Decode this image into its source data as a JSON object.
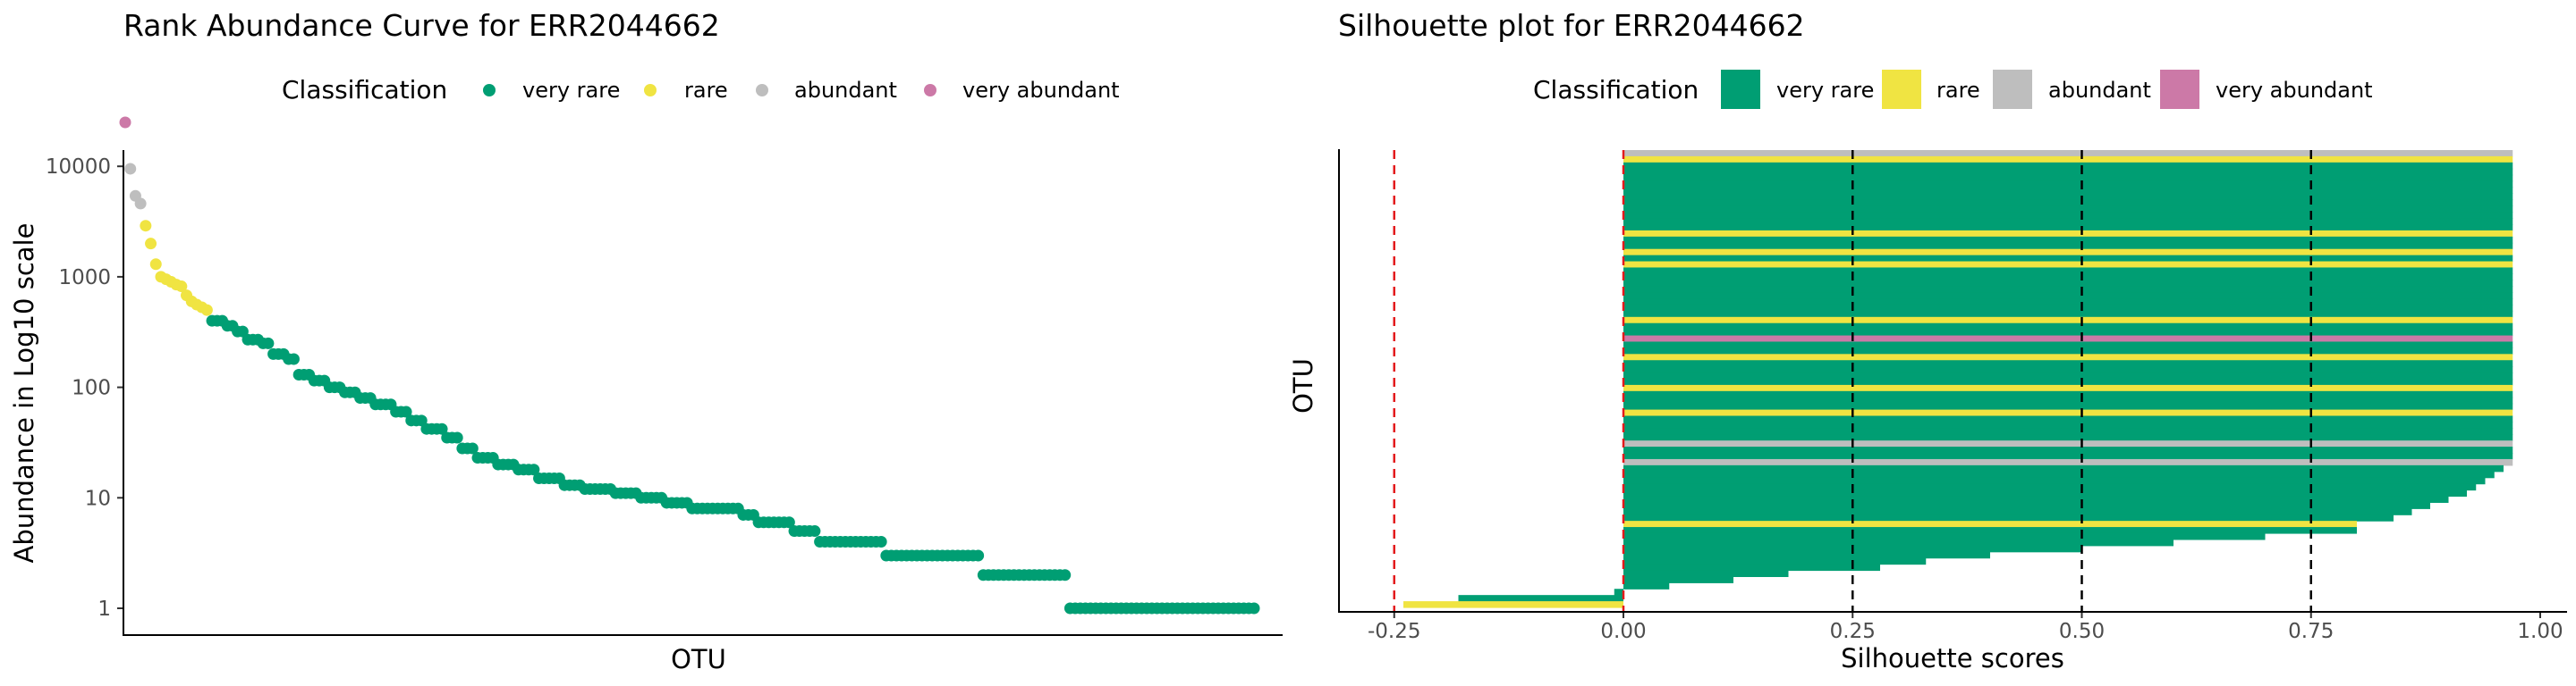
{
  "colors": {
    "very_rare": "#009E73",
    "rare": "#F0E442",
    "abundant": "#BEBEBE",
    "very_abundant": "#CC79A7"
  },
  "chart_data": [
    {
      "type": "scatter",
      "title": "Rank Abundance Curve for  ERR2044662",
      "xlabel": "OTU",
      "ylabel": "Abundance in Log10 scale",
      "y_scale": "log10",
      "ylim": [
        0.8,
        40000
      ],
      "y_ticks": [
        1,
        10,
        100,
        1000,
        10000
      ],
      "y_tick_labels": [
        "1",
        "10",
        "100",
        "1000",
        "10000"
      ],
      "x_ticks_shown": false,
      "grid": false,
      "legend": {
        "title": "Classification",
        "position": "top",
        "entries": [
          "very rare",
          "rare",
          "abundant",
          "very abundant"
        ]
      },
      "series_note": "one point per OTU, ranked by abundance",
      "points": [
        {
          "class": "very abundant",
          "values": [
            25000
          ]
        },
        {
          "class": "abundant",
          "values": [
            9500,
            5400,
            4600
          ]
        },
        {
          "class": "rare",
          "values": [
            2900,
            2000,
            1300,
            1000,
            950,
            900,
            850,
            820,
            680,
            600,
            560,
            530,
            500
          ]
        },
        {
          "class": "very rare",
          "runs": [
            {
              "value": 400,
              "count": 3
            },
            {
              "value": 360,
              "count": 2
            },
            {
              "value": 320,
              "count": 2
            },
            {
              "value": 270,
              "count": 3
            },
            {
              "value": 250,
              "count": 2
            },
            {
              "value": 200,
              "count": 3
            },
            {
              "value": 180,
              "count": 2
            },
            {
              "value": 130,
              "count": 3
            },
            {
              "value": 115,
              "count": 3
            },
            {
              "value": 100,
              "count": 3
            },
            {
              "value": 90,
              "count": 3
            },
            {
              "value": 80,
              "count": 3
            },
            {
              "value": 70,
              "count": 4
            },
            {
              "value": 60,
              "count": 3
            },
            {
              "value": 50,
              "count": 3
            },
            {
              "value": 42,
              "count": 4
            },
            {
              "value": 35,
              "count": 3
            },
            {
              "value": 28,
              "count": 3
            },
            {
              "value": 23,
              "count": 4
            },
            {
              "value": 20,
              "count": 4
            },
            {
              "value": 18,
              "count": 4
            },
            {
              "value": 15,
              "count": 5
            },
            {
              "value": 13,
              "count": 4
            },
            {
              "value": 12,
              "count": 6
            },
            {
              "value": 11,
              "count": 5
            },
            {
              "value": 10,
              "count": 5
            },
            {
              "value": 9,
              "count": 5
            },
            {
              "value": 8,
              "count": 10
            },
            {
              "value": 7,
              "count": 3
            },
            {
              "value": 6,
              "count": 7
            },
            {
              "value": 5,
              "count": 5
            },
            {
              "value": 4,
              "count": 13
            },
            {
              "value": 3,
              "count": 19
            },
            {
              "value": 2,
              "count": 17
            },
            {
              "value": 1,
              "count": 37
            }
          ]
        }
      ]
    },
    {
      "type": "bar",
      "orientation": "horizontal",
      "title": "Silhouette plot for ERR2044662",
      "xlabel": "Silhouette scores",
      "ylabel": "OTU",
      "xlim": [
        -0.3,
        1.0
      ],
      "x_ticks": [
        -0.25,
        0,
        0.25,
        0.5,
        0.75,
        1.0
      ],
      "x_tick_labels": [
        "-0.25",
        "0.00",
        "0.25",
        "0.50",
        "0.75",
        "1.00"
      ],
      "reference_lines": {
        "red_dashed": [
          -0.25,
          0
        ],
        "black_dashed": [
          0.25,
          0.5,
          0.75
        ]
      },
      "grid": false,
      "legend": {
        "title": "Classification",
        "position": "top",
        "entries": [
          "very rare",
          "rare",
          "abundant",
          "very abundant"
        ]
      },
      "bars_note": "one horizontal bar per OTU, listed top to bottom",
      "bars": [
        {
          "class": "abundant",
          "value": 0.97
        },
        {
          "class": "rare",
          "value": 0.97
        },
        {
          "class": "very rare",
          "value": 0.97,
          "count": 11
        },
        {
          "class": "rare",
          "value": 0.97
        },
        {
          "class": "very rare",
          "value": 0.97,
          "count": 2
        },
        {
          "class": "rare",
          "value": 0.97
        },
        {
          "class": "very rare",
          "value": 0.97,
          "count": 1
        },
        {
          "class": "rare",
          "value": 0.97
        },
        {
          "class": "very rare",
          "value": 0.97,
          "count": 8
        },
        {
          "class": "rare",
          "value": 0.97
        },
        {
          "class": "very rare",
          "value": 0.97,
          "count": 2
        },
        {
          "class": "very abundant",
          "value": 0.97
        },
        {
          "class": "very rare",
          "value": 0.97,
          "count": 2
        },
        {
          "class": "rare",
          "value": 0.97
        },
        {
          "class": "very rare",
          "value": 0.97,
          "count": 4
        },
        {
          "class": "rare",
          "value": 0.97
        },
        {
          "class": "very rare",
          "value": 0.97,
          "count": 3
        },
        {
          "class": "rare",
          "value": 0.97
        },
        {
          "class": "very rare",
          "value": 0.97,
          "count": 4
        },
        {
          "class": "abundant",
          "value": 0.97
        },
        {
          "class": "very rare",
          "value": 0.97,
          "count": 2
        },
        {
          "class": "abundant",
          "value": 0.97
        },
        {
          "class": "very rare",
          "value": 0.96,
          "count": 1
        },
        {
          "class": "very rare",
          "value": 0.95,
          "count": 1
        },
        {
          "class": "very rare",
          "value": 0.94,
          "count": 1
        },
        {
          "class": "very rare",
          "value": 0.93,
          "count": 1
        },
        {
          "class": "very rare",
          "value": 0.92,
          "count": 1
        },
        {
          "class": "very rare",
          "value": 0.9,
          "count": 1
        },
        {
          "class": "very rare",
          "value": 0.88,
          "count": 1
        },
        {
          "class": "very rare",
          "value": 0.86,
          "count": 1
        },
        {
          "class": "very rare",
          "value": 0.84,
          "count": 1
        },
        {
          "class": "rare",
          "value": 0.8
        },
        {
          "class": "very rare",
          "value": 0.8,
          "count": 1
        },
        {
          "class": "very rare",
          "value": 0.7,
          "count": 1
        },
        {
          "class": "very rare",
          "value": 0.6,
          "count": 1
        },
        {
          "class": "very rare",
          "value": 0.5,
          "count": 1
        },
        {
          "class": "very rare",
          "value": 0.4,
          "count": 1
        },
        {
          "class": "very rare",
          "value": 0.33,
          "count": 1
        },
        {
          "class": "very rare",
          "value": 0.28,
          "count": 1
        },
        {
          "class": "very rare",
          "value": 0.18,
          "count": 1
        },
        {
          "class": "very rare",
          "value": 0.12,
          "count": 1
        },
        {
          "class": "very rare",
          "value": 0.05,
          "count": 1
        },
        {
          "class": "very rare",
          "value": -0.01,
          "count": 1
        },
        {
          "class": "very rare",
          "value": -0.18,
          "count": 1
        },
        {
          "class": "rare",
          "value": -0.24
        }
      ]
    }
  ]
}
